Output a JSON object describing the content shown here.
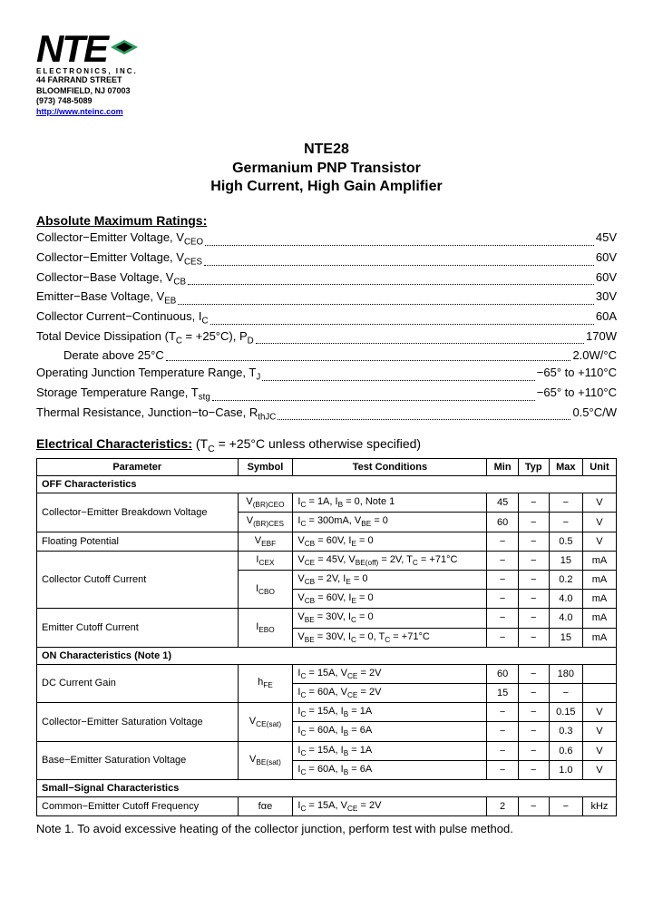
{
  "company": {
    "name": "NTE",
    "subline": "ELECTRONICS, INC.",
    "address1": "44 FARRAND STREET",
    "address2": "BLOOMFIELD, NJ 07003",
    "phone": "(973) 748-5089",
    "url": "http://www.nteinc.com"
  },
  "title": {
    "line1": "NTE28",
    "line2": "Germanium PNP Transistor",
    "line3": "High Current, High Gain Amplifier"
  },
  "ratings_header": "Absolute Maximum Ratings:",
  "ratings": [
    {
      "label": "Collector−Emitter Voltage, V<sub>CEO</sub>",
      "value": "45V"
    },
    {
      "label": "Collector−Emitter Voltage, V<sub>CES</sub>",
      "value": "60V"
    },
    {
      "label": "Collector−Base Voltage, V<sub>CB</sub>",
      "value": "60V"
    },
    {
      "label": "Emitter−Base Voltage, V<sub>EB</sub>",
      "value": "30V"
    },
    {
      "label": "Collector Current−Continuous, I<sub>C</sub>",
      "value": "60A"
    },
    {
      "label": "Total Device Dissipation (T<sub>C</sub> = +25°C), P<sub>D</sub>",
      "value": "170W"
    },
    {
      "label": "Derate above 25°C",
      "value": "2.0W/°C",
      "indent": true
    },
    {
      "label": "Operating Junction Temperature Range, T<sub>J</sub>",
      "value": "−65° to +110°C"
    },
    {
      "label": "Storage Temperature Range, T<sub>stg</sub>",
      "value": "−65° to +110°C"
    },
    {
      "label": "Thermal Resistance, Junction−to−Case, R<sub>thJC</sub>",
      "value": "0.5°C/W"
    }
  ],
  "elec_header_bold": "Electrical Characteristics:",
  "elec_header_rest": "  (T<sub>C</sub> = +25°C unless otherwise specified)",
  "table": {
    "headers": [
      "Parameter",
      "Symbol",
      "Test Conditions",
      "Min",
      "Typ",
      "Max",
      "Unit"
    ],
    "sections": [
      {
        "title": "OFF Characteristics",
        "rows": [
          {
            "param": "Collector−Emitter Breakdown Voltage",
            "symbol": "V<sub>(BR)CEO</sub>",
            "cond": "I<sub>C</sub> = 1A, I<sub>B</sub> = 0, Note 1",
            "min": "45",
            "typ": "−",
            "max": "−",
            "unit": "V",
            "rowspan": 2
          },
          {
            "symbol": "V<sub>(BR)CES</sub>",
            "cond": "I<sub>C</sub> = 300mA, V<sub>BE</sub> = 0",
            "min": "60",
            "typ": "−",
            "max": "−",
            "unit": "V"
          },
          {
            "param": "Floating Potential",
            "symbol": "V<sub>EBF</sub>",
            "cond": "V<sub>CB</sub> = 60V, I<sub>E</sub> = 0",
            "min": "−",
            "typ": "−",
            "max": "0.5",
            "unit": "V"
          },
          {
            "param": "Collector Cutoff Current",
            "symbol": "I<sub>CEX</sub>",
            "cond": "V<sub>CE</sub> = 45V, V<sub>BE(off)</sub> = 2V, T<sub>C</sub> = +71°C",
            "min": "−",
            "typ": "−",
            "max": "15",
            "unit": "mA",
            "rowspan": 3
          },
          {
            "symbol": "I<sub>CBO</sub>",
            "cond": "V<sub>CB</sub> = 2V, I<sub>E</sub> = 0",
            "min": "−",
            "typ": "−",
            "max": "0.2",
            "unit": "mA",
            "symrowspan": 2
          },
          {
            "cond": "V<sub>CB</sub> = 60V, I<sub>E</sub> = 0",
            "min": "−",
            "typ": "−",
            "max": "4.0",
            "unit": "mA"
          },
          {
            "param": "Emitter Cutoff Current",
            "symbol": "I<sub>EBO</sub>",
            "cond": "V<sub>BE</sub> = 30V, I<sub>C</sub> = 0",
            "min": "−",
            "typ": "−",
            "max": "4.0",
            "unit": "mA",
            "rowspan": 2,
            "symrowspan": 2
          },
          {
            "cond": "V<sub>BE</sub> = 30V, I<sub>C</sub> = 0, T<sub>C</sub> = +71°C",
            "min": "−",
            "typ": "−",
            "max": "15",
            "unit": "mA"
          }
        ]
      },
      {
        "title": "ON Characteristics  (Note 1)",
        "rows": [
          {
            "param": "DC Current Gain",
            "symbol": "h<sub>FE</sub>",
            "cond": "I<sub>C</sub> = 15A, V<sub>CE</sub> = 2V",
            "min": "60",
            "typ": "−",
            "max": "180",
            "unit": "",
            "rowspan": 2,
            "symrowspan": 2
          },
          {
            "cond": "I<sub>C</sub> = 60A, V<sub>CE</sub> = 2V",
            "min": "15",
            "typ": "−",
            "max": "−",
            "unit": ""
          },
          {
            "param": "Collector−Emitter Saturation Voltage",
            "symbol": "V<sub>CE(sat)</sub>",
            "cond": "I<sub>C</sub> = 15A, I<sub>B</sub> = 1A",
            "min": "−",
            "typ": "−",
            "max": "0.15",
            "unit": "V",
            "rowspan": 2,
            "symrowspan": 2
          },
          {
            "cond": "I<sub>C</sub> = 60A, I<sub>B</sub> = 6A",
            "min": "−",
            "typ": "−",
            "max": "0.3",
            "unit": "V"
          },
          {
            "param": "Base−Emitter Saturation Voltage",
            "symbol": "V<sub>BE(sat)</sub>",
            "cond": "I<sub>C</sub> = 15A, I<sub>B</sub> = 1A",
            "min": "−",
            "typ": "−",
            "max": "0.6",
            "unit": "V",
            "rowspan": 2,
            "symrowspan": 2
          },
          {
            "cond": "I<sub>C</sub> = 60A, I<sub>B</sub> = 6A",
            "min": "−",
            "typ": "−",
            "max": "1.0",
            "unit": "V"
          }
        ]
      },
      {
        "title": "Small−Signal Characteristics",
        "rows": [
          {
            "param": "Common−Emitter Cutoff Frequency",
            "symbol": "fαe",
            "cond": "I<sub>C</sub> = 15A, V<sub>CE</sub> = 2V",
            "min": "2",
            "typ": "−",
            "max": "−",
            "unit": "kHz"
          }
        ]
      }
    ]
  },
  "note": "Note  1. To avoid excessive heating of the collector junction, perform test with pulse method."
}
